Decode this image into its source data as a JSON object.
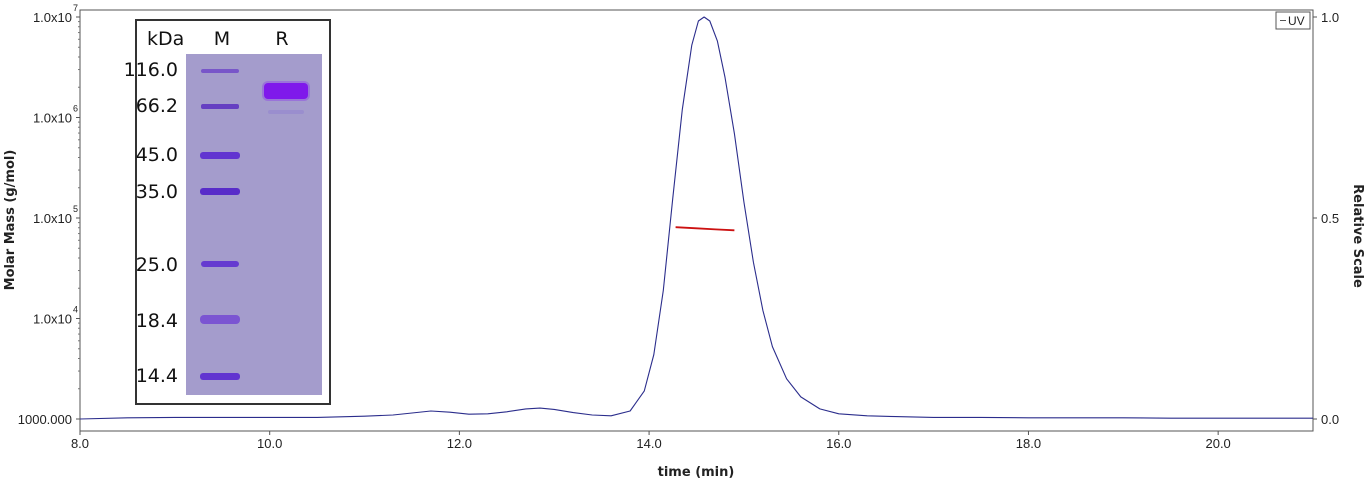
{
  "chart_data": {
    "type": "line",
    "xlabel": "time (min)",
    "ylabel_left": "Molar Mass (g/mol)",
    "ylabel_right": "Relative Scale",
    "xlim": [
      8.0,
      21.0
    ],
    "ylim_left": [
      1000,
      10000000
    ],
    "ylim_right": [
      0.0,
      1.0
    ],
    "left_scale": "log",
    "grid": false,
    "x_ticks": [
      "8.0",
      "10.0",
      "12.0",
      "14.0",
      "16.0",
      "18.0",
      "20.0"
    ],
    "x_tick_values": [
      8,
      10,
      12,
      14,
      16,
      18,
      20
    ],
    "y_left_ticks": [
      {
        "mant": "1.0x10",
        "exp": "7"
      },
      {
        "mant": "1.0x10",
        "exp": "6"
      },
      {
        "mant": "1.0x10",
        "exp": "5"
      },
      {
        "mant": "1.0x10",
        "exp": "4"
      },
      {
        "mant": "1000.000",
        "exp": ""
      }
    ],
    "y_left_tick_values": [
      10000000,
      1000000,
      100000,
      10000,
      1000
    ],
    "y_right_ticks": [
      "1.0",
      "0.5",
      "0.0"
    ],
    "y_right_tick_values": [
      1.0,
      0.5,
      0.0
    ],
    "legend": {
      "entries": [
        "UV"
      ],
      "position": "top-right"
    },
    "series": [
      {
        "name": "UV",
        "color": "#2b2d8c",
        "axis": "right",
        "x": [
          8.0,
          8.5,
          9.0,
          9.5,
          10.0,
          10.5,
          11.0,
          11.3,
          11.5,
          11.7,
          11.9,
          12.1,
          12.3,
          12.5,
          12.7,
          12.85,
          13.0,
          13.2,
          13.4,
          13.6,
          13.8,
          13.95,
          14.05,
          14.15,
          14.25,
          14.35,
          14.45,
          14.52,
          14.58,
          14.64,
          14.72,
          14.8,
          14.9,
          15.0,
          15.1,
          15.2,
          15.3,
          15.45,
          15.6,
          15.8,
          16.0,
          16.3,
          16.6,
          17.0,
          17.5,
          18.0,
          18.5,
          19.0,
          19.5,
          20.0,
          20.5,
          21.0
        ],
        "y": [
          0.0,
          0.003,
          0.004,
          0.004,
          0.004,
          0.004,
          0.007,
          0.01,
          0.015,
          0.02,
          0.017,
          0.012,
          0.013,
          0.018,
          0.025,
          0.027,
          0.024,
          0.016,
          0.01,
          0.008,
          0.02,
          0.07,
          0.16,
          0.32,
          0.55,
          0.77,
          0.93,
          0.99,
          1.0,
          0.99,
          0.94,
          0.85,
          0.71,
          0.54,
          0.39,
          0.27,
          0.18,
          0.1,
          0.055,
          0.025,
          0.013,
          0.008,
          0.006,
          0.004,
          0.004,
          0.003,
          0.003,
          0.003,
          0.002,
          0.002,
          0.002,
          0.002
        ]
      },
      {
        "name": "Molar Mass",
        "color": "#cc1111",
        "axis": "left",
        "x": [
          14.28,
          14.5,
          14.7,
          14.9
        ],
        "y": [
          81000,
          79000,
          77000,
          75500
        ]
      }
    ]
  },
  "gel": {
    "header_kda": "kDa",
    "header_m": "M",
    "header_r": "R",
    "marker_labels": [
      "116.0",
      "66.2",
      "45.0",
      "35.0",
      "25.0",
      "18.4",
      "14.4"
    ]
  }
}
